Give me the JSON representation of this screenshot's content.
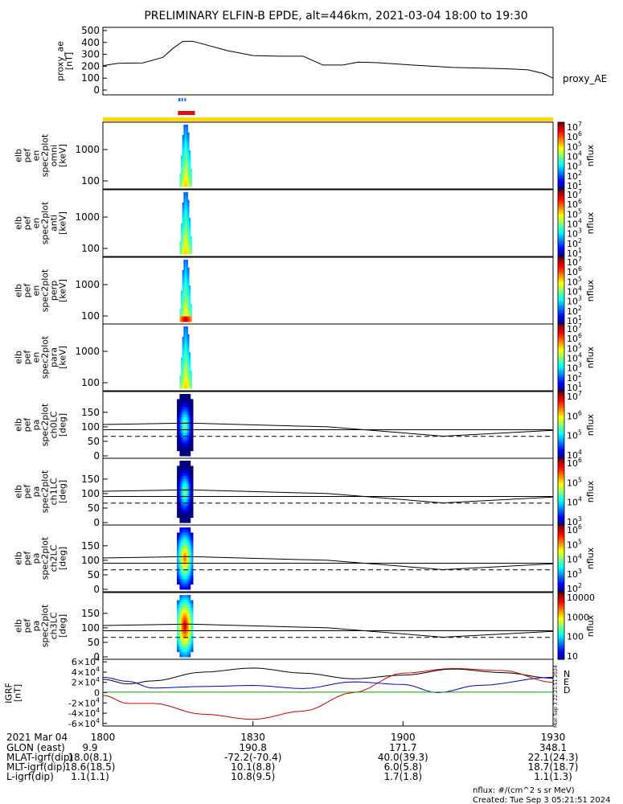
{
  "title": "PRELIMINARY ELFIN-B EPDE, alt=446km, 2021-03-04 18:00 to 19:30",
  "chart_data": [
    {
      "type": "line",
      "panel": "proxy_ae",
      "ylabel": [
        "proxy_ae",
        "[nT]"
      ],
      "legend": "proxy_AE",
      "ylim": [
        0,
        500
      ],
      "yticks": [
        "0",
        "100",
        "200",
        "300",
        "400",
        "500"
      ],
      "series": [
        {
          "x_minutes": [
            0,
            3,
            8,
            12,
            14,
            16,
            18,
            25,
            30,
            35,
            40,
            44,
            48,
            51,
            55,
            60,
            70,
            80,
            85,
            88,
            90
          ],
          "values": [
            205,
            225,
            228,
            275,
            350,
            410,
            410,
            330,
            290,
            285,
            285,
            210,
            210,
            235,
            230,
            215,
            190,
            180,
            170,
            140,
            100
          ]
        }
      ]
    },
    {
      "type": "markers",
      "panel": "science_zone_indicators",
      "bars": [
        {
          "color": "#1a6ee8",
          "x_start_minutes": 15.1,
          "x_end_minutes": 15.5
        },
        {
          "color": "#1a6ee8",
          "x_start_minutes": 15.7,
          "x_end_minutes": 16.0
        },
        {
          "color": "#1a6ee8",
          "x_start_minutes": 16.3,
          "x_end_minutes": 16.6
        },
        {
          "color": "#e01010",
          "x_start_minutes": 15.0,
          "x_end_minutes": 18.4
        },
        {
          "color": "#ffd700",
          "x_start_minutes": 0,
          "x_end_minutes": 90
        }
      ]
    },
    {
      "type": "heatmap",
      "panel": "en_omni",
      "ylabel": [
        "elb",
        "pef",
        "en",
        "spec2plot",
        "omni",
        "[keV]"
      ],
      "log_y": true,
      "yticks": [
        "100",
        "1000"
      ],
      "colorbar_label": "nflux",
      "colorbar_ticks": [
        "10^1",
        "10^2",
        "10^3",
        "10^4",
        "10^5",
        "10^6",
        "10^7"
      ]
    },
    {
      "type": "heatmap",
      "panel": "en_anti",
      "ylabel": [
        "elb",
        "pef",
        "en",
        "spec2plot",
        "anti",
        "[keV]"
      ],
      "log_y": true,
      "yticks": [
        "100",
        "1000"
      ],
      "colorbar_label": "nflux",
      "colorbar_ticks": [
        "10^1",
        "10^2",
        "10^3",
        "10^4",
        "10^5",
        "10^6",
        "10^7"
      ]
    },
    {
      "type": "heatmap",
      "panel": "en_perp",
      "ylabel": [
        "elb",
        "pef",
        "en",
        "spec2plot",
        "perp",
        "[keV]"
      ],
      "log_y": true,
      "yticks": [
        "100",
        "1000"
      ],
      "colorbar_label": "nflux",
      "colorbar_ticks": [
        "10^1",
        "10^2",
        "10^3",
        "10^4",
        "10^5",
        "10^6",
        "10^7"
      ]
    },
    {
      "type": "heatmap",
      "panel": "en_para",
      "ylabel": [
        "elb",
        "pef",
        "en",
        "spec2plot",
        "para",
        "[keV]"
      ],
      "log_y": true,
      "yticks": [
        "100",
        "1000"
      ],
      "colorbar_label": "nflux",
      "colorbar_ticks": [
        "10^1",
        "10^2",
        "10^3",
        "10^4",
        "10^5",
        "10^6",
        "10^7"
      ]
    },
    {
      "type": "heatmap",
      "panel": "pa_ch0LC",
      "ylabel": [
        "elb",
        "pef",
        "pa",
        "spec2plot",
        "ch0LC",
        "[deg]"
      ],
      "ylim": [
        0,
        180
      ],
      "yticks": [
        "0",
        "50",
        "100",
        "150"
      ],
      "colorbar_label": "nflux",
      "colorbar_ticks": [
        "10^4",
        "10^5",
        "10^6",
        "10^7"
      ],
      "overlay_lines": {
        "solid_90": 90,
        "loss_cone_x_minutes": [
          0,
          17,
          45,
          68,
          90
        ],
        "loss_cone_upper_deg": [
          108,
          113,
          100,
          68,
          88
        ],
        "dashed_deg": 67
      }
    },
    {
      "type": "heatmap",
      "panel": "pa_ch1LC",
      "ylabel": [
        "elb",
        "pef",
        "pa",
        "spec2plot",
        "ch1LC",
        "[deg]"
      ],
      "ylim": [
        0,
        180
      ],
      "yticks": [
        "0",
        "50",
        "100",
        "150"
      ],
      "colorbar_label": "nflux",
      "colorbar_ticks": [
        "10^3",
        "10^4",
        "10^5",
        "10^6"
      ],
      "overlay_lines": {
        "solid_90": 90,
        "loss_cone_x_minutes": [
          0,
          17,
          45,
          68,
          90
        ],
        "loss_cone_upper_deg": [
          108,
          113,
          100,
          68,
          88
        ],
        "dashed_deg": 67
      }
    },
    {
      "type": "heatmap",
      "panel": "pa_ch2LC",
      "ylabel": [
        "elb",
        "pef",
        "pa",
        "spec2plot",
        "ch2LC",
        "[deg]"
      ],
      "ylim": [
        0,
        180
      ],
      "yticks": [
        "0",
        "50",
        "100",
        "150"
      ],
      "colorbar_label": "nflux",
      "colorbar_ticks": [
        "10^2",
        "10^3",
        "10^4",
        "10^5",
        "10^6"
      ],
      "overlay_lines": {
        "solid_90": 90,
        "loss_cone_x_minutes": [
          0,
          17,
          45,
          68,
          90
        ],
        "loss_cone_upper_deg": [
          108,
          113,
          100,
          68,
          88
        ],
        "dashed_deg": 67
      }
    },
    {
      "type": "heatmap",
      "panel": "pa_ch3LC",
      "ylabel": [
        "elb",
        "pef",
        "pa",
        "spec2plot",
        "ch3LC",
        "[deg]"
      ],
      "ylim": [
        0,
        180
      ],
      "yticks": [
        "0",
        "50",
        "100",
        "150"
      ],
      "colorbar_label": "nflux",
      "colorbar_ticks": [
        "10",
        "100",
        "1000",
        "10000"
      ],
      "overlay_lines": {
        "solid_90": 90,
        "loss_cone_x_minutes": [
          0,
          17,
          45,
          68,
          90
        ],
        "loss_cone_upper_deg": [
          108,
          113,
          100,
          68,
          88
        ],
        "dashed_deg": 67
      }
    },
    {
      "type": "line",
      "panel": "IGRF",
      "ylabel": [
        "IGRF",
        "[nT]"
      ],
      "ylim": [
        -65000,
        65000
      ],
      "yticks": [
        "-6×10^4",
        "-4×10^4",
        "-2×10^4",
        "0",
        "2×10^4",
        "4×10^4",
        "6×10^4"
      ],
      "legend": [
        "N",
        "E",
        "D"
      ],
      "side_text": "Mon Sep 3 22:21:51 2024",
      "series": [
        {
          "name": "N",
          "color": "#000000",
          "x_minutes": [
            0,
            5,
            10,
            20,
            30,
            40,
            50,
            60,
            70,
            80,
            90
          ],
          "values": [
            26000,
            17000,
            23000,
            40000,
            48000,
            38000,
            27000,
            34000,
            46000,
            39000,
            28000
          ]
        },
        {
          "name": "E",
          "color": "#0000cc",
          "x_minutes": [
            0,
            5,
            10,
            20,
            30,
            40,
            50,
            60,
            67,
            75,
            90
          ],
          "values": [
            30000,
            22000,
            9000,
            12000,
            14000,
            8000,
            21000,
            16000,
            0,
            14000,
            30000
          ]
        },
        {
          "name": "D",
          "color": "#cc0000",
          "x_minutes": [
            0,
            5,
            10,
            20,
            30,
            40,
            50,
            60,
            70,
            80,
            90
          ],
          "values": [
            -5000,
            -21000,
            -21000,
            -42000,
            -52000,
            -36000,
            0,
            38000,
            47000,
            43000,
            20000
          ]
        },
        {
          "name": "",
          "color": "#00aa00",
          "x_minutes": [
            0,
            90
          ],
          "values": [
            1000,
            1000
          ]
        }
      ]
    }
  ],
  "x_axis": {
    "date_label": "2021 Mar 04",
    "ticks": [
      "1800",
      "1830",
      "1900",
      "1930"
    ],
    "rows": [
      {
        "label": "GLON (east)",
        "values": [
          "9.9",
          "190.8",
          "171.7",
          "348.1"
        ]
      },
      {
        "label": "MLAT-igrf(dip)",
        "values": [
          "18.0(8.1)",
          "-72.2(-70.4)",
          "40.0(39.3)",
          "22.1(24.3)"
        ]
      },
      {
        "label": "MLT-igrf(dip)",
        "values": [
          "18.6(18.5)",
          "10.1(8.8)",
          "6.0(5.8)",
          "18.7(18.7)"
        ]
      },
      {
        "label": "L-igrf(dip)",
        "values": [
          "1.1(1.1)",
          "10.8(9.5)",
          "1.7(1.8)",
          "1.1(1.3)"
        ]
      }
    ]
  },
  "footer": {
    "units": "nflux: #/(cm^2 s sr MeV)",
    "created": "Created: Tue Sep  3 05:21:51 2024"
  }
}
